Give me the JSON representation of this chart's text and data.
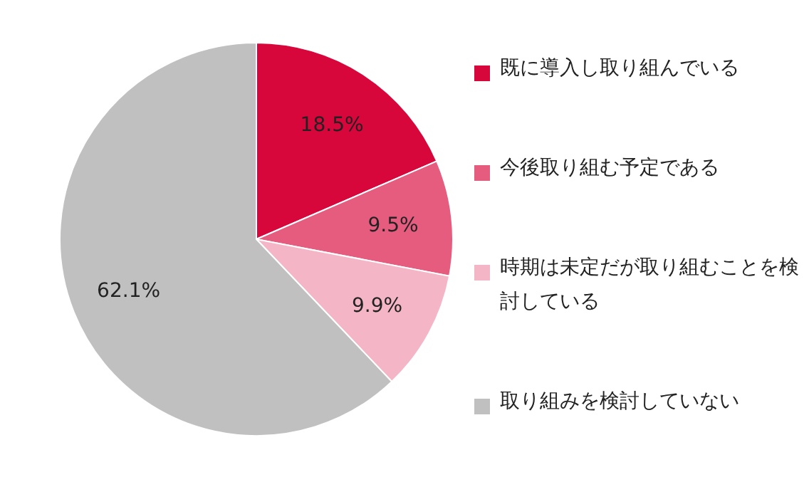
{
  "chart_data": {
    "type": "pie",
    "categories": [
      "既に導入し取り組んでいる",
      "今後取り組む予定である",
      "時期は未定だが取り組むことを検討している",
      "取り組みを検討していない"
    ],
    "values": [
      18.5,
      9.5,
      9.9,
      62.1
    ],
    "colors": [
      "#d7063b",
      "#e65c7f",
      "#f4b6c6",
      "#c0c0c0"
    ],
    "value_labels": [
      "18.5%",
      "9.5%",
      "9.9%",
      "62.1%"
    ],
    "legend": "right"
  }
}
